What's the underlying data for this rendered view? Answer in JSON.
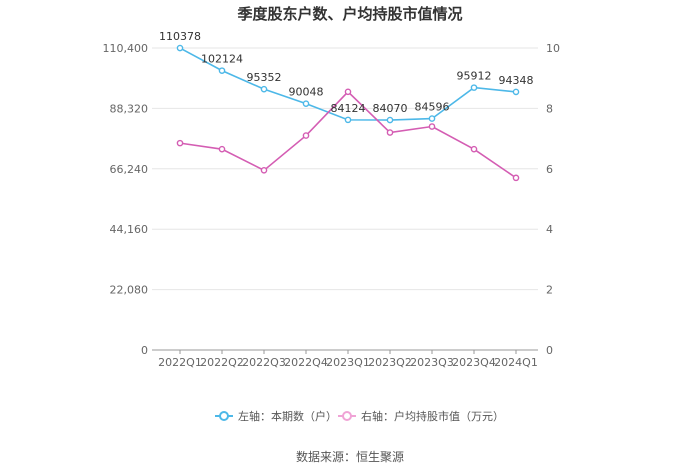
{
  "chart_data": {
    "type": "line",
    "title": "季度股东户数、户均持股市值情况",
    "categories": [
      "2022Q1",
      "2022Q2",
      "2022Q3",
      "2022Q4",
      "2023Q1",
      "2023Q2",
      "2023Q3",
      "2023Q4",
      "2024Q1"
    ],
    "left_axis": {
      "ylim": [
        0,
        110400
      ],
      "ticks": [
        0,
        22080,
        44160,
        66240,
        88320,
        110400
      ],
      "tick_labels": [
        "0",
        "22,080",
        "44,160",
        "66,240",
        "88,320",
        "110,400"
      ]
    },
    "right_axis": {
      "ylim": [
        0,
        10
      ],
      "ticks": [
        0,
        2,
        4,
        6,
        8,
        10
      ],
      "tick_labels": [
        "0",
        "2",
        "4",
        "6",
        "8",
        "10"
      ]
    },
    "series": [
      {
        "name": "左轴：本期数（户）",
        "axis": "left",
        "color": "#4db8e8",
        "values": [
          110378,
          102124,
          95352,
          90048,
          84124,
          84070,
          84596,
          95912,
          94348
        ],
        "labels": [
          "110378",
          "102124",
          "95352",
          "90048",
          "84124",
          "84070",
          "84596",
          "95912",
          "94348"
        ]
      },
      {
        "name": "右轴：户均持股市值（万元）",
        "axis": "right",
        "color": "#d45db3",
        "values": [
          6.85,
          6.65,
          5.95,
          7.1,
          8.55,
          7.2,
          7.4,
          6.65,
          5.7
        ]
      }
    ],
    "grid": true,
    "legend_position": "bottom"
  },
  "source": "数据来源：恒生聚源"
}
